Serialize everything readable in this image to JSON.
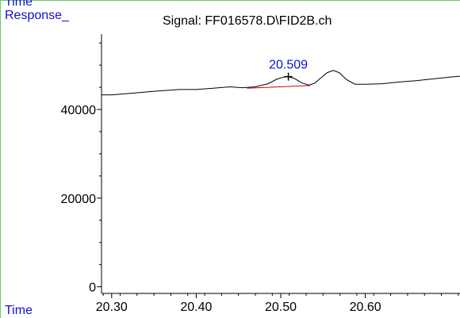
{
  "colors": {
    "axis": "#000000",
    "signal": "#000000",
    "baseline": "#d00000",
    "label_blue": "#1010d0",
    "frame_green": "#66cc66"
  },
  "chart_data": {
    "type": "line",
    "title": "Signal: FF016578.D\\FID2B.ch",
    "ylabel": "Response_",
    "xlabel": "Time",
    "top_left_label": "Time",
    "xlim": [
      20.288,
      20.712
    ],
    "ylim": [
      -1500,
      57000
    ],
    "x_ticks": [
      {
        "value": 20.3,
        "label": "20.30"
      },
      {
        "value": 20.4,
        "label": "20.40"
      },
      {
        "value": 20.5,
        "label": "20.50"
      },
      {
        "value": 20.6,
        "label": "20.60"
      }
    ],
    "y_ticks": [
      {
        "value": 0,
        "label": "0"
      },
      {
        "value": 20000,
        "label": "20000"
      },
      {
        "value": 40000,
        "label": "40000"
      }
    ],
    "series": [
      {
        "values": [
          [
            20.288,
            43300
          ],
          [
            20.3,
            43300
          ],
          [
            20.32,
            43600
          ],
          [
            20.35,
            44100
          ],
          [
            20.38,
            44500
          ],
          [
            20.4,
            44500
          ],
          [
            20.42,
            44800
          ],
          [
            20.44,
            45100
          ],
          [
            20.455,
            44900
          ],
          [
            20.47,
            45100
          ],
          [
            20.485,
            45800
          ],
          [
            20.495,
            46800
          ],
          [
            20.503,
            47300
          ],
          [
            20.509,
            47400
          ],
          [
            20.516,
            47000
          ],
          [
            20.525,
            46000
          ],
          [
            20.533,
            45500
          ],
          [
            20.54,
            45900
          ],
          [
            20.548,
            47200
          ],
          [
            20.555,
            48300
          ],
          [
            20.562,
            48800
          ],
          [
            20.569,
            48300
          ],
          [
            20.578,
            46700
          ],
          [
            20.588,
            45700
          ],
          [
            20.6,
            45700
          ],
          [
            20.62,
            45800
          ],
          [
            20.64,
            46200
          ],
          [
            20.66,
            46500
          ],
          [
            20.68,
            46900
          ],
          [
            20.7,
            47300
          ],
          [
            20.712,
            47500
          ]
        ]
      }
    ],
    "integration_baseline": [
      [
        20.46,
        44800
      ],
      [
        20.535,
        45400
      ]
    ],
    "peak_annotation": {
      "x": 20.509,
      "y": 47400,
      "label": "20.509"
    }
  }
}
